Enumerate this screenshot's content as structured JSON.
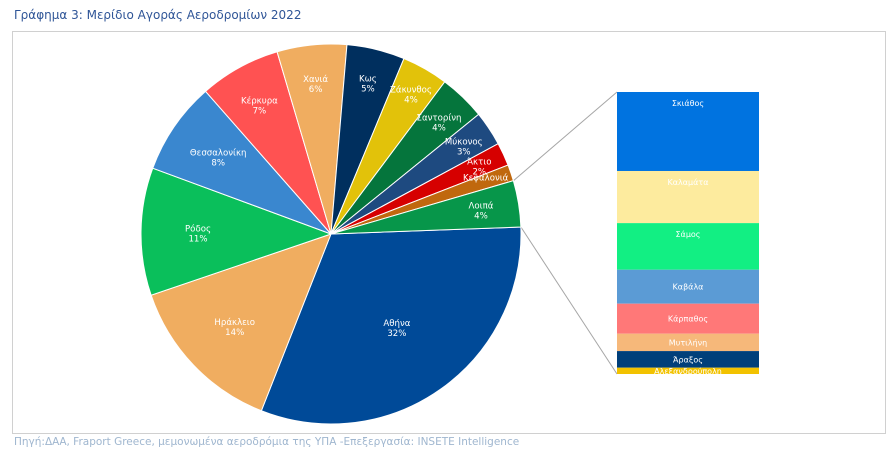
{
  "title": "Γράφημα 3: Μερίδιο Αγοράς Αεροδρομίων 2022",
  "source": "Πηγή:ΔΑΑ, Fraport Greece, μεμονωμένα αεροδρόμια της ΥΠΑ -Επεξεργασία: INSETE Intelligence",
  "chart_data": {
    "type": "pie",
    "title": "",
    "slices": [
      {
        "label": "Αθήνα",
        "value_label": "32%",
        "value": 32,
        "color": "#004a98"
      },
      {
        "label": "Ηράκλειο",
        "value_label": "14%",
        "value": 14,
        "color": "#f0ad60"
      },
      {
        "label": "Ρόδος",
        "value_label": "11%",
        "value": 11,
        "color": "#0abf5b"
      },
      {
        "label": "Θεσσαλονίκη",
        "value_label": "8%",
        "value": 8,
        "color": "#3a87cf"
      },
      {
        "label": "Κέρκυρα",
        "value_label": "7%",
        "value": 7,
        "color": "#ff5252"
      },
      {
        "label": "Χανιά",
        "value_label": "6%",
        "value": 6,
        "color": "#f0ad60"
      },
      {
        "label": "Κως",
        "value_label": "5%",
        "value": 5,
        "color": "#002f5e"
      },
      {
        "label": "Ζάκυνθος",
        "value_label": "4%",
        "value": 4,
        "color": "#e2c20a"
      },
      {
        "label": "Σαντορίνη",
        "value_label": "4%",
        "value": 4,
        "color": "#05753c"
      },
      {
        "label": "Μύκονος",
        "value_label": "3%",
        "value": 3,
        "color": "#1e4a80"
      },
      {
        "label": "Άκτιο",
        "value_label": "2%",
        "value": 2,
        "color": "#d60000"
      },
      {
        "label": "Κεφαλονιά",
        "value_label": "",
        "value": 1.4,
        "color": "#c0680e"
      },
      {
        "label": "Λοιπά",
        "value_label": "4%",
        "value": 4,
        "color": "#07964a"
      }
    ],
    "breakdown": {
      "of": "Λοιπά",
      "items": [
        {
          "label": "Σκιάθος",
          "value": 1.0,
          "color": "#0073e0"
        },
        {
          "label": "Καλαμάτα",
          "value": 0.66,
          "color": "#fdeb9e"
        },
        {
          "label": "Σάμος",
          "value": 0.59,
          "color": "#12ef83"
        },
        {
          "label": "Καβάλα",
          "value": 0.43,
          "color": "#5b9bd5"
        },
        {
          "label": "Κάρπαθος",
          "value": 0.38,
          "color": "#ff7878"
        },
        {
          "label": "Μυτιλήνη",
          "value": 0.22,
          "color": "#f6b87a"
        },
        {
          "label": "Άραξος",
          "value": 0.21,
          "color": "#003f7a"
        },
        {
          "label": "Αλεξανδρούπολη",
          "value": 0.08,
          "color": "#f2c200"
        }
      ]
    }
  }
}
